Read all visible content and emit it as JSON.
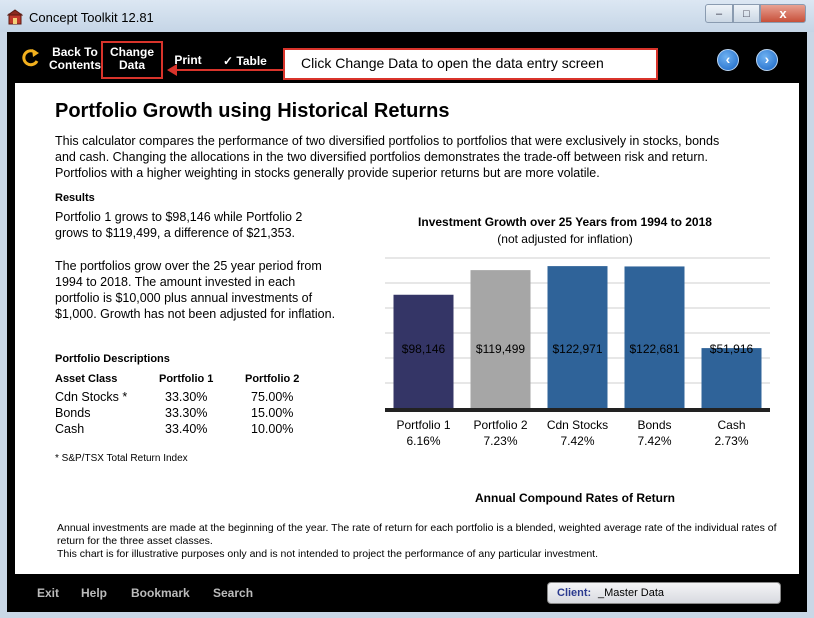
{
  "window": {
    "title": "Concept Toolkit 12.81",
    "controls": {
      "minimize": "–",
      "maximize": "□",
      "close": "x"
    }
  },
  "toolbar": {
    "back_line1": "Back To",
    "back_line2": "Contents",
    "change_line1": "Change",
    "change_line2": "Data",
    "print": "Print",
    "table_check": "✓",
    "table": "Table",
    "prev": "‹",
    "next": "›"
  },
  "callout": {
    "text": "Click Change Data to open the data entry screen"
  },
  "page": {
    "title": "Portfolio Growth using Historical Returns",
    "intro": "This calculator compares the performance of two diversified portfolios to portfolios that were exclusively in stocks, bonds and cash. Changing the allocations in the two diversified portfolios demonstrates the trade-off between risk and return. Portfolios with a higher weighting in stocks generally provide superior returns but are more volatile.",
    "results_heading": "Results",
    "results_text": "Portfolio 1 grows to $98,146 while Portfolio 2 grows to $119,499, a difference of $21,353.",
    "period_text": "The portfolios grow over the 25 year period from 1994 to 2018. The amount invested in each portfolio is $10,000 plus annual investments of $1,000. Growth has not been adjusted for inflation.",
    "desc_heading": "Portfolio Descriptions",
    "table": {
      "headers": [
        "Asset Class",
        "Portfolio 1",
        "Portfolio 2"
      ],
      "rows": [
        [
          "Cdn Stocks *",
          "33.30%",
          "75.00%"
        ],
        [
          "Bonds",
          "33.30%",
          "15.00%"
        ],
        [
          "Cash",
          "33.40%",
          "10.00%"
        ]
      ]
    },
    "footnote": "* S&P/TSX Total Return Index",
    "bottom_note_1": "Annual investments are made at the beginning of the year. The rate of return for each portfolio is a blended, weighted average rate of the individual rates of return for the three asset classes.",
    "bottom_note_2": "This chart is for illustrative purposes only and is not intended to project the performance of any particular investment."
  },
  "chart_data": {
    "type": "bar",
    "title": "Investment Growth over 25 Years from 1994 to 2018",
    "subtitle": "(not adjusted for inflation)",
    "xlabel": "Annual Compound Rates of Return",
    "categories": [
      "Portfolio 1",
      "Portfolio 2",
      "Cdn Stocks",
      "Bonds",
      "Cash"
    ],
    "rates": [
      "6.16%",
      "7.23%",
      "7.42%",
      "7.42%",
      "2.73%"
    ],
    "values": [
      98146,
      119499,
      122971,
      122681,
      51916
    ],
    "value_labels": [
      "$98,146",
      "$119,499",
      "$122,971",
      "$122,681",
      "$51,916"
    ],
    "colors": [
      "#343566",
      "#a6a6a6",
      "#2f6399",
      "#2f6399",
      "#2f6399"
    ],
    "ylim": [
      0,
      130000
    ],
    "grid": true
  },
  "bottombar": {
    "exit": "Exit",
    "help": "Help",
    "bookmark": "Bookmark",
    "search": "Search",
    "client_label": "Client:",
    "client_value": "_Master Data"
  }
}
